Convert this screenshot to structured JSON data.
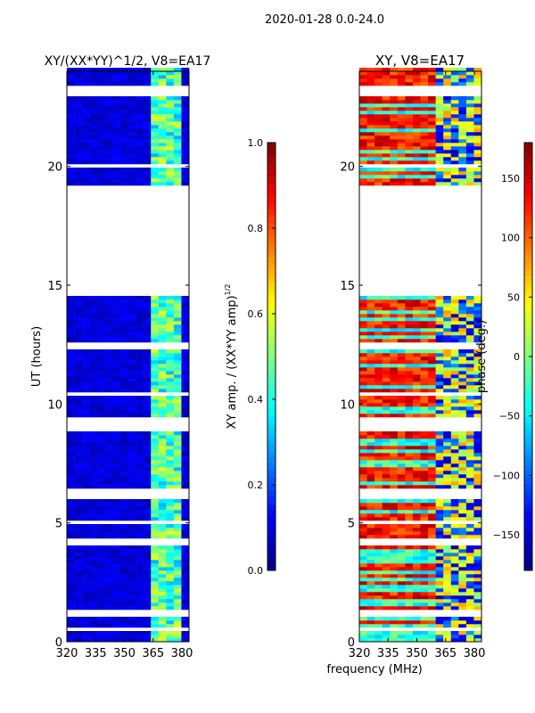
{
  "chart_data": [
    {
      "type": "heatmap",
      "suptitle": "2020-01-28 0.0-24.0",
      "title": "XY/(XX*YY)^1/2, V8=EA17",
      "title_main": "XY/(XX*YY)",
      "title_exp": "1/2",
      "title_tail": ", V8=EA17",
      "xlabel": "frequency (MHz)",
      "ylabel": "UT (hours)",
      "xlim": [
        320,
        383.7
      ],
      "ylim": [
        0,
        24
      ],
      "xticks": [
        "320",
        "335",
        "350",
        "365",
        "380"
      ],
      "yticks": [
        "0",
        "5",
        "10",
        "15",
        "20"
      ],
      "colorbar": {
        "label": "XY amp. / (XX*YY amp)^1/2",
        "label_main": "XY amp. / (XX*YY amp)",
        "label_exp": "1/2",
        "range": [
          0.0,
          1.0
        ],
        "ticks": [
          "0.0",
          "0.2",
          "0.4",
          "0.6",
          "0.8",
          "1.0"
        ],
        "colormap": "jet"
      },
      "value_profile": {
        "low_freq_value": 0.05,
        "high_freq_band_MHz": [
          362,
          380
        ],
        "high_freq_value": 0.45
      }
    },
    {
      "type": "heatmap",
      "title": "XY, V8=EA17",
      "xlim": [
        320,
        383.7
      ],
      "ylim": [
        0,
        24
      ],
      "xticks": [
        "320",
        "335",
        "350",
        "365",
        "380"
      ],
      "yticks": [
        "0",
        "5",
        "10",
        "15",
        "20"
      ],
      "colorbar": {
        "label": "phase (deg.)",
        "range": [
          -180,
          180
        ],
        "ticks": [
          "−150",
          "−100",
          "−50",
          "0",
          "50",
          "100",
          "150"
        ],
        "tick_values": [
          -150,
          -100,
          -50,
          0,
          50,
          100,
          150
        ],
        "colormap": "jet"
      },
      "value_profile": {
        "low_freq_phase_deg": 130,
        "high_freq_band_MHz": [
          360,
          384
        ],
        "high_freq_phase_deg": -120
      }
    }
  ],
  "data_gaps_UT_hours": [
    [
      0.5,
      0.6
    ],
    [
      1.0,
      1.35
    ],
    [
      1.9,
      2.0
    ],
    [
      4.0,
      4.3
    ],
    [
      5.0,
      5.1
    ],
    [
      6.0,
      6.4
    ],
    [
      8.9,
      9.5
    ],
    [
      10.3,
      10.45
    ],
    [
      12.3,
      12.55
    ],
    [
      14.5,
      19.25
    ],
    [
      19.9,
      20.15
    ],
    [
      22.9,
      23.45
    ]
  ],
  "colors": {
    "axis": "#000000",
    "background": "#ffffff"
  }
}
